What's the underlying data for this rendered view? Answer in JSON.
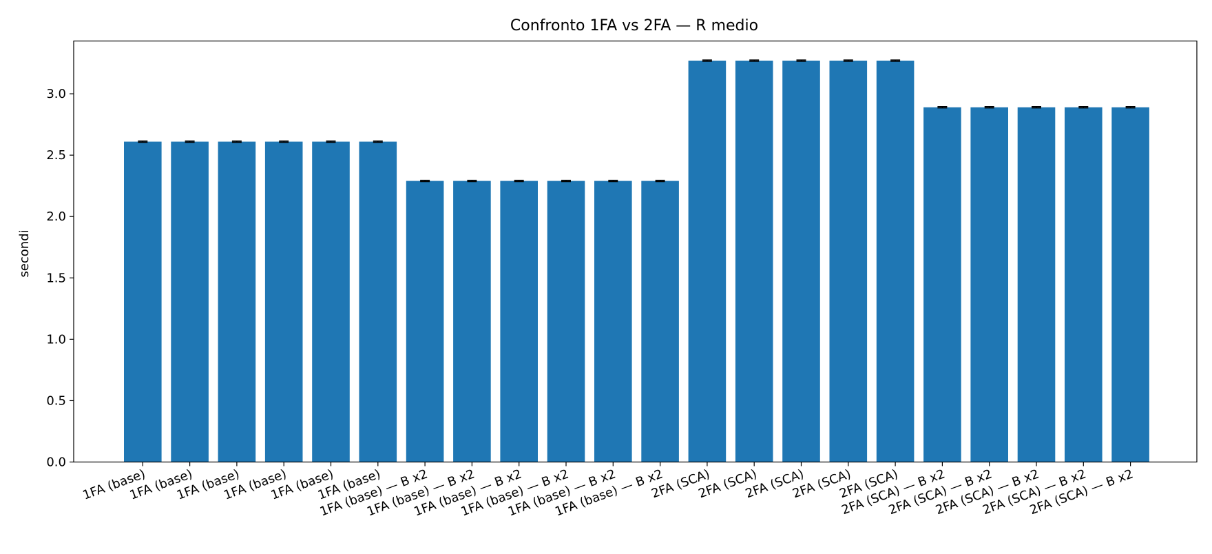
{
  "chart_data": {
    "type": "bar",
    "title": "Confronto 1FA vs 2FA — R medio",
    "xlabel": "",
    "ylabel": "secondi",
    "ylim": [
      0,
      3.43
    ],
    "yticks": [
      0.0,
      0.5,
      1.0,
      1.5,
      2.0,
      2.5,
      3.0
    ],
    "ytick_labels": [
      "0.0",
      "0.5",
      "1.0",
      "1.5",
      "2.0",
      "2.5",
      "3.0"
    ],
    "categories": [
      "1FA (base)",
      "1FA (base)",
      "1FA (base)",
      "1FA (base)",
      "1FA (base)",
      "1FA (base)",
      "1FA (base) — B x2",
      "1FA (base) — B x2",
      "1FA (base) — B x2",
      "1FA (base) — B x2",
      "1FA (base) — B x2",
      "1FA (base) — B x2",
      "2FA (SCA)",
      "2FA (SCA)",
      "2FA (SCA)",
      "2FA (SCA)",
      "2FA (SCA)",
      "2FA (SCA) — B x2",
      "2FA (SCA) — B x2",
      "2FA (SCA) — B x2",
      "2FA (SCA) — B x2",
      "2FA (SCA) — B x2"
    ],
    "values": [
      2.61,
      2.61,
      2.61,
      2.61,
      2.61,
      2.61,
      2.29,
      2.29,
      2.29,
      2.29,
      2.29,
      2.29,
      3.27,
      3.27,
      3.27,
      3.27,
      3.27,
      2.89,
      2.89,
      2.89,
      2.89,
      2.89
    ],
    "errors": [
      0.005,
      0.005,
      0.005,
      0.005,
      0.005,
      0.005,
      0.005,
      0.005,
      0.005,
      0.005,
      0.005,
      0.005,
      0.005,
      0.005,
      0.005,
      0.005,
      0.005,
      0.005,
      0.005,
      0.005,
      0.005,
      0.005
    ],
    "bar_color": "#1f77b4",
    "errorbar_color": "#000000",
    "grid": false,
    "xtick_rotation_deg": 20
  }
}
